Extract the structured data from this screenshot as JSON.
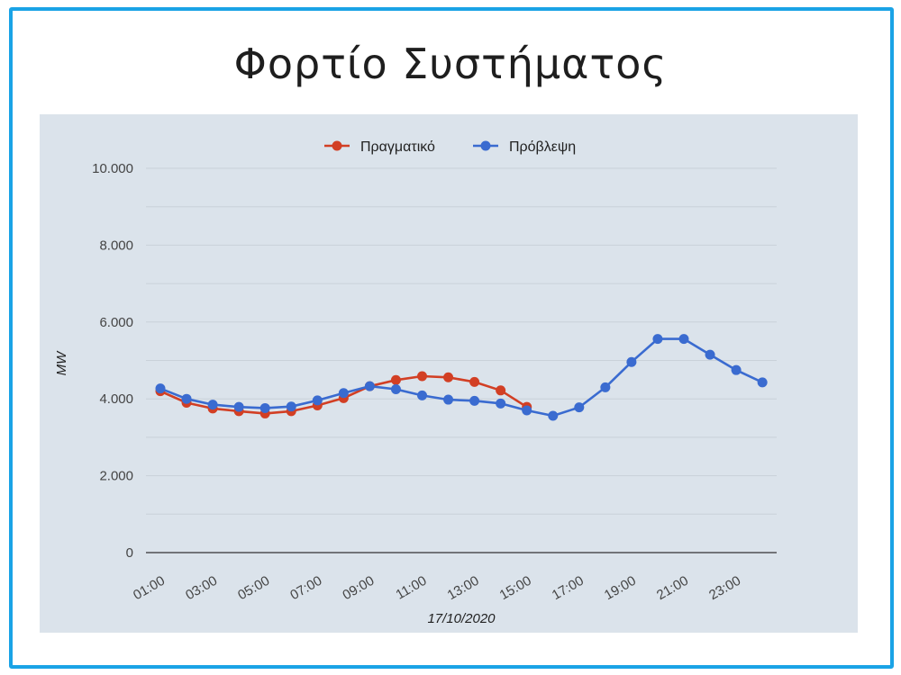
{
  "page": {
    "title": "Φορτίο Συστήματος"
  },
  "colors": {
    "border": "#1aa3e6",
    "plot_background": "#dbe3eb",
    "actual": "#d23f24",
    "forecast": "#3a6bd0",
    "grid": "#c9d1d9"
  },
  "chart_data": {
    "type": "line",
    "title": "",
    "xlabel": "17/10/2020",
    "ylabel": "MW",
    "x": [
      "01:00",
      "02:00",
      "03:00",
      "04:00",
      "05:00",
      "06:00",
      "07:00",
      "08:00",
      "09:00",
      "10:00",
      "11:00",
      "12:00",
      "13:00",
      "14:00",
      "15:00",
      "16:00",
      "17:00",
      "18:00",
      "19:00",
      "20:00",
      "21:00",
      "22:00",
      "23:00",
      "24:00"
    ],
    "x_tick_labels": [
      "01:00",
      "03:00",
      "05:00",
      "07:00",
      "09:00",
      "11:00",
      "13:00",
      "15:00",
      "17:00",
      "19:00",
      "21:00",
      "23:00"
    ],
    "ylim": [
      0,
      10000
    ],
    "y_tick_labels": [
      "0",
      "2.000",
      "4.000",
      "6.000",
      "8.000",
      "10.000"
    ],
    "y_ticks": [
      0,
      2000,
      4000,
      6000,
      8000,
      10000
    ],
    "grid": true,
    "legend_position": "top-center",
    "series": [
      {
        "name": "Πραγματικό",
        "color": "#d23f24",
        "values": [
          4200,
          3900,
          3750,
          3680,
          3620,
          3680,
          3830,
          4020,
          4330,
          4490,
          4590,
          4560,
          4440,
          4220,
          3790,
          null,
          null,
          null,
          null,
          null,
          null,
          null,
          null,
          null
        ]
      },
      {
        "name": "Πρόβλεψη",
        "color": "#3a6bd0",
        "values": [
          4270,
          4000,
          3850,
          3790,
          3760,
          3800,
          3960,
          4150,
          4330,
          4250,
          4090,
          3980,
          3950,
          3880,
          3700,
          3560,
          3780,
          4300,
          4960,
          5560,
          5560,
          5150,
          4750,
          4430
        ]
      }
    ]
  }
}
